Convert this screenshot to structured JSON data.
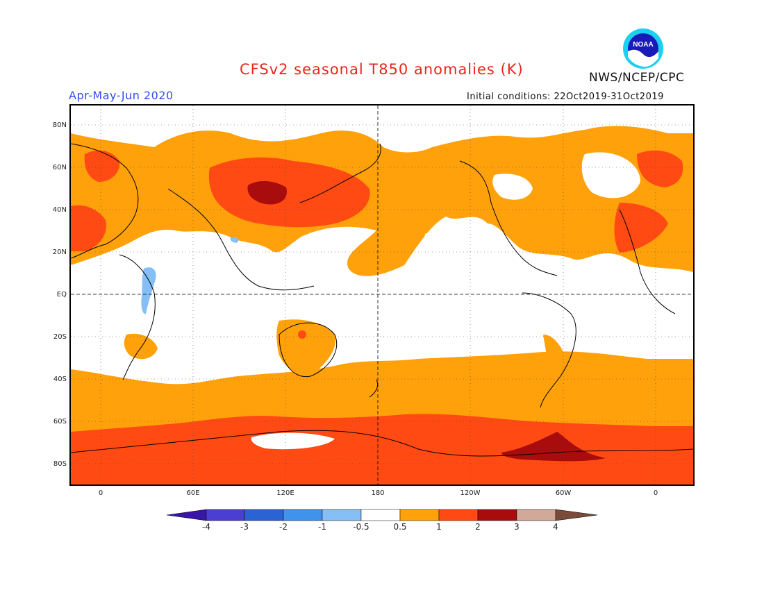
{
  "title": "CFSv2 seasonal T850 anomalies (K)",
  "period": "Apr-May-Jun 2020",
  "initial_conditions": "Initial conditions: 22Oct2019-31Oct2019",
  "agency": "NWS/NCEP/CPC",
  "logo_text": "NOAA",
  "lat_labels": [
    "80N",
    "60N",
    "40N",
    "20N",
    "EQ",
    "20S",
    "40S",
    "60S",
    "80S"
  ],
  "lon_labels": [
    "0",
    "60E",
    "120E",
    "180",
    "120W",
    "60W",
    "0"
  ],
  "colorbar": {
    "ticks": [
      "-4",
      "-3",
      "-2",
      "-1",
      "-0.5",
      "0.5",
      "1",
      "2",
      "3",
      "4"
    ],
    "colors": [
      "#3a16a8",
      "#4a3fd0",
      "#2a63d3",
      "#3f93eb",
      "#86bff5",
      "#ffffff",
      "#ffa10a",
      "#ff4a14",
      "#a80c0c",
      "#d2a898",
      "#7a4a3a"
    ]
  },
  "map_colors": {
    "positive_0_5_1": "#ffa10a",
    "positive_1_2": "#ff4a14",
    "positive_2_3": "#a80c0c",
    "negative_0_5_1": "#86bff5"
  }
}
